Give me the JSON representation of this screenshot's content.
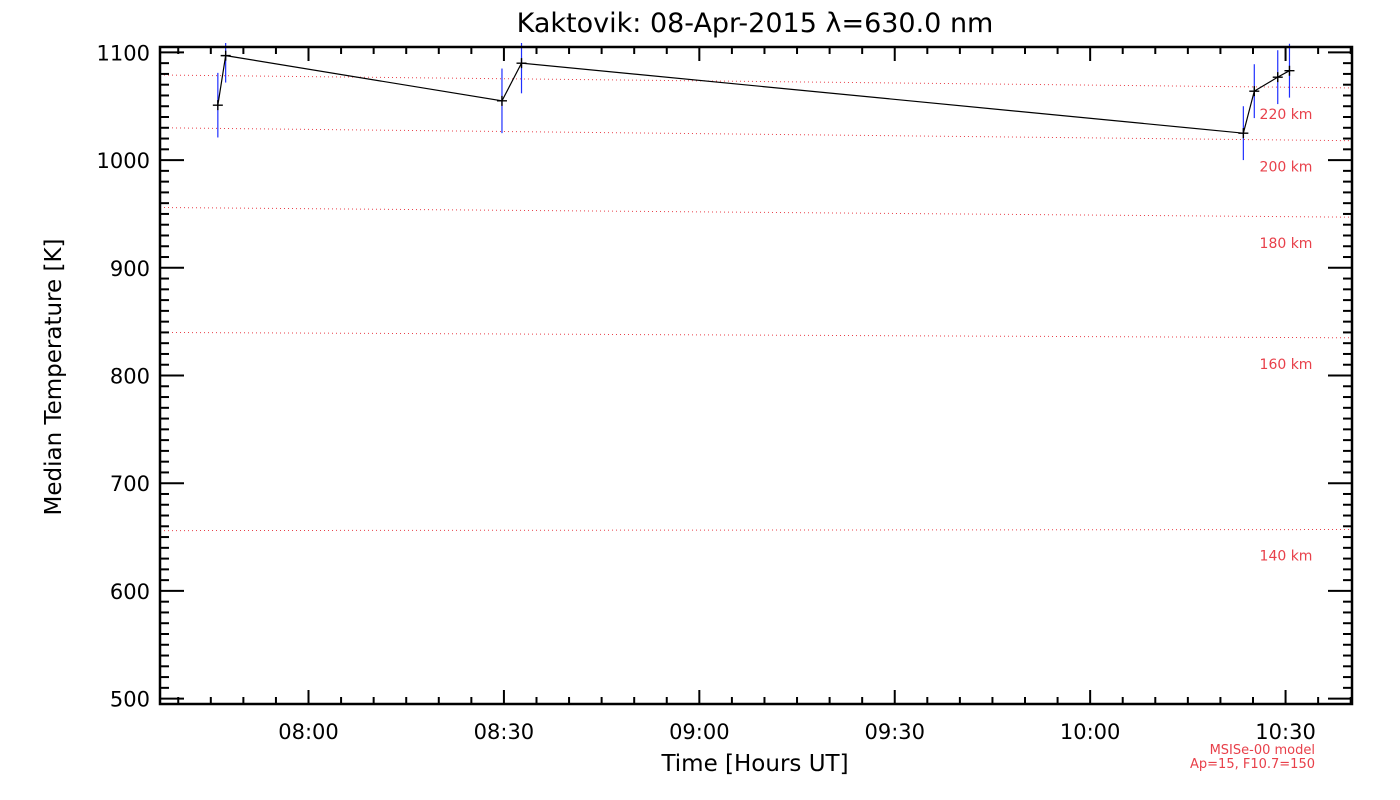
{
  "chart_data": {
    "type": "line",
    "title": "Kaktovik: 08-Apr-2015 λ=630.0 nm",
    "xlabel": "Time [Hours UT]",
    "ylabel": "Median Temperature [K]",
    "xlim_hours": [
      7.62,
      10.67
    ],
    "ylim": [
      495,
      1105
    ],
    "x_ticks": [
      {
        "hours": 8.0,
        "label": "08:00"
      },
      {
        "hours": 8.5,
        "label": "08:30"
      },
      {
        "hours": 9.0,
        "label": "09:00"
      },
      {
        "hours": 9.5,
        "label": "09:30"
      },
      {
        "hours": 10.0,
        "label": "10:00"
      },
      {
        "hours": 10.5,
        "label": "10:30"
      }
    ],
    "y_ticks": [
      {
        "value": 500,
        "label": "500"
      },
      {
        "value": 600,
        "label": "600"
      },
      {
        "value": 700,
        "label": "700"
      },
      {
        "value": 800,
        "label": "800"
      },
      {
        "value": 900,
        "label": "900"
      },
      {
        "value": 1000,
        "label": "1000"
      },
      {
        "value": 1100,
        "label": "1100"
      }
    ],
    "series": [
      {
        "color": "#000000",
        "error_color": "#1f2fff",
        "points": [
          {
            "hours": 7.768,
            "value": 1051,
            "err": 30
          },
          {
            "hours": 7.788,
            "value": 1097,
            "err": 25
          },
          {
            "hours": 8.495,
            "value": 1055,
            "err": 30
          },
          {
            "hours": 8.545,
            "value": 1090,
            "err": 28
          },
          {
            "hours": 10.392,
            "value": 1025,
            "err": 25
          },
          {
            "hours": 10.42,
            "value": 1064,
            "err": 25
          },
          {
            "hours": 10.48,
            "value": 1077,
            "err": 25
          },
          {
            "hours": 10.51,
            "value": 1083,
            "err": 25
          }
        ]
      }
    ],
    "reference_lines": {
      "color": "#e8404a",
      "style": "dotted",
      "lines": [
        {
          "label": "220 km",
          "start": 1079,
          "end": 1067
        },
        {
          "label": "200 km",
          "start": 1030,
          "end": 1018
        },
        {
          "label": "180 km",
          "start": 956,
          "end": 947
        },
        {
          "label": "160 km",
          "start": 840,
          "end": 835
        },
        {
          "label": "140 km",
          "start": 656,
          "end": 657
        }
      ]
    },
    "model_note": [
      "MSISe-00 model",
      "Ap=15, F10.7=150"
    ],
    "grid": false,
    "legend": "none"
  }
}
